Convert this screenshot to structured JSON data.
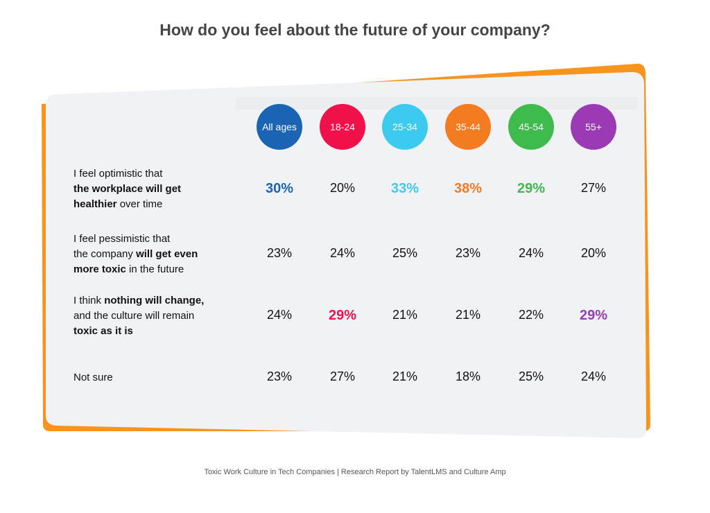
{
  "title": "How do you feel about the future of your company?",
  "table": {
    "columns": [
      {
        "text": "All ages",
        "color": "#1b64b4"
      },
      {
        "text": "18-24",
        "color": "#f0114a"
      },
      {
        "text": "25-34",
        "color": "#3ccbef"
      },
      {
        "text": "35-44",
        "color": "#f57b20"
      },
      {
        "text": "45-54",
        "color": "#3fba4c"
      },
      {
        "text": "55+",
        "color": "#9a3ab4"
      }
    ],
    "rows": [
      {
        "label": [
          [
            {
              "text": "I feel optimistic that",
              "bold": false
            }
          ],
          [
            {
              "text": "the workplace will get",
              "bold": true
            }
          ],
          [
            {
              "text": "healthier",
              "bold": true
            },
            {
              "text": " over time",
              "bold": false
            }
          ]
        ],
        "cells": [
          {
            "text": "30%",
            "highlight": true
          },
          {
            "text": "20%",
            "highlight": false
          },
          {
            "text": "33%",
            "highlight": true
          },
          {
            "text": "38%",
            "highlight": true
          },
          {
            "text": "29%",
            "highlight": true
          },
          {
            "text": "27%",
            "highlight": false
          }
        ]
      },
      {
        "label": [
          [
            {
              "text": "I feel pessimistic that",
              "bold": false
            }
          ],
          [
            {
              "text": "the company ",
              "bold": false
            },
            {
              "text": "will get even",
              "bold": true
            }
          ],
          [
            {
              "text": "more toxic",
              "bold": true
            },
            {
              "text": " in the future",
              "bold": false
            }
          ]
        ],
        "cells": [
          {
            "text": "23%",
            "highlight": false
          },
          {
            "text": "24%",
            "highlight": false
          },
          {
            "text": "25%",
            "highlight": false
          },
          {
            "text": "23%",
            "highlight": false
          },
          {
            "text": "24%",
            "highlight": false
          },
          {
            "text": "20%",
            "highlight": false
          }
        ]
      },
      {
        "label": [
          [
            {
              "text": "I think ",
              "bold": false
            },
            {
              "text": "nothing will change,",
              "bold": true
            }
          ],
          [
            {
              "text": "and the culture will remain",
              "bold": false
            }
          ],
          [
            {
              "text": "toxic as it is",
              "bold": true
            }
          ]
        ],
        "cells": [
          {
            "text": "24%",
            "highlight": false
          },
          {
            "text": "29%",
            "highlight": true
          },
          {
            "text": "21%",
            "highlight": false
          },
          {
            "text": "21%",
            "highlight": false
          },
          {
            "text": "22%",
            "highlight": false
          },
          {
            "text": "29%",
            "highlight": true
          }
        ]
      },
      {
        "label": [
          [
            {
              "text": "Not sure",
              "bold": false
            }
          ]
        ],
        "cells": [
          {
            "text": "23%",
            "highlight": false
          },
          {
            "text": "27%",
            "highlight": false
          },
          {
            "text": "21%",
            "highlight": false
          },
          {
            "text": "18%",
            "highlight": false
          },
          {
            "text": "25%",
            "highlight": false
          },
          {
            "text": "24%",
            "highlight": false
          }
        ]
      }
    ]
  },
  "footer": "Toxic Work Culture in Tech Companies | Research Report by TalentLMS and Culture Amp"
}
